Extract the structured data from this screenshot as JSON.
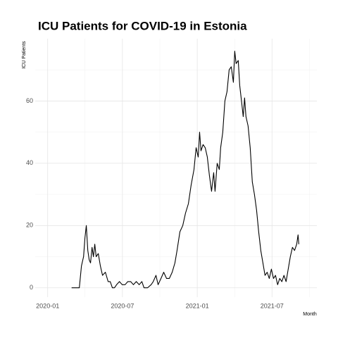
{
  "chart_data": {
    "type": "line",
    "title": "ICU Patients for COVID-19 in Estonia",
    "x_label": "Month",
    "y_label": "ICU Patients",
    "x": [
      1.92,
      2.54,
      2.71,
      2.88,
      2.99,
      3.1,
      3.22,
      3.33,
      3.44,
      3.56,
      3.67,
      3.78,
      3.89,
      4.06,
      4.23,
      4.4,
      4.63,
      4.85,
      5.02,
      5.19,
      5.36,
      5.53,
      5.76,
      5.98,
      6.21,
      6.43,
      6.66,
      6.88,
      7.11,
      7.34,
      7.56,
      7.73,
      8.01,
      8.3,
      8.47,
      8.69,
      8.86,
      9.09,
      9.31,
      9.54,
      9.76,
      9.99,
      10.21,
      10.38,
      10.61,
      10.84,
      11.06,
      11.29,
      11.51,
      11.74,
      11.91,
      12.08,
      12.19,
      12.3,
      12.47,
      12.64,
      12.81,
      12.98,
      13.15,
      13.32,
      13.43,
      13.6,
      13.77,
      13.88,
      14.05,
      14.22,
      14.39,
      14.56,
      14.73,
      14.9,
      15.01,
      15.12,
      15.29,
      15.41,
      15.58,
      15.69,
      15.8,
      15.91,
      16.08,
      16.25,
      16.42,
      16.59,
      16.76,
      16.93,
      17.1,
      17.27,
      17.44,
      17.61,
      17.78,
      17.95,
      18.12,
      18.28,
      18.45,
      18.62,
      18.79,
      18.96,
      19.13,
      19.3,
      19.47,
      19.64,
      19.81,
      19.98,
      20.09,
      20.15
    ],
    "series": [
      {
        "name": "ICU Patients",
        "color": "#000000",
        "values": [
          0,
          0,
          7,
          10,
          16,
          20,
          12,
          9,
          8,
          13,
          10,
          14,
          10,
          11,
          7,
          4,
          5,
          2,
          2,
          0,
          0,
          1,
          2,
          1,
          1,
          2,
          2,
          1,
          2,
          1,
          2,
          0,
          0,
          1,
          2,
          4,
          1,
          3,
          5,
          3,
          3,
          5,
          8,
          12,
          18,
          20,
          24,
          27,
          33,
          38,
          45,
          42,
          50,
          44,
          46,
          45,
          42,
          36,
          31,
          37,
          31,
          40,
          38,
          45,
          50,
          60,
          63,
          70,
          71,
          66,
          76,
          72,
          73,
          65,
          59,
          55,
          61,
          55,
          52,
          45,
          34,
          30,
          25,
          18,
          12,
          8,
          4,
          5,
          3,
          6,
          3,
          4,
          1,
          3,
          2,
          4,
          2,
          6,
          10,
          13,
          12,
          14,
          17,
          14
        ]
      }
    ],
    "xlim": [
      -1,
      21.6
    ],
    "xticks": [
      {
        "value": 0,
        "label": "2020-01"
      },
      {
        "value": 6,
        "label": "2020-07"
      },
      {
        "value": 12,
        "label": "2021-01"
      },
      {
        "value": 18,
        "label": "2021-07"
      }
    ],
    "ylim": [
      -3,
      80
    ],
    "yticks": [
      0,
      20,
      40,
      60
    ],
    "grid": true
  }
}
